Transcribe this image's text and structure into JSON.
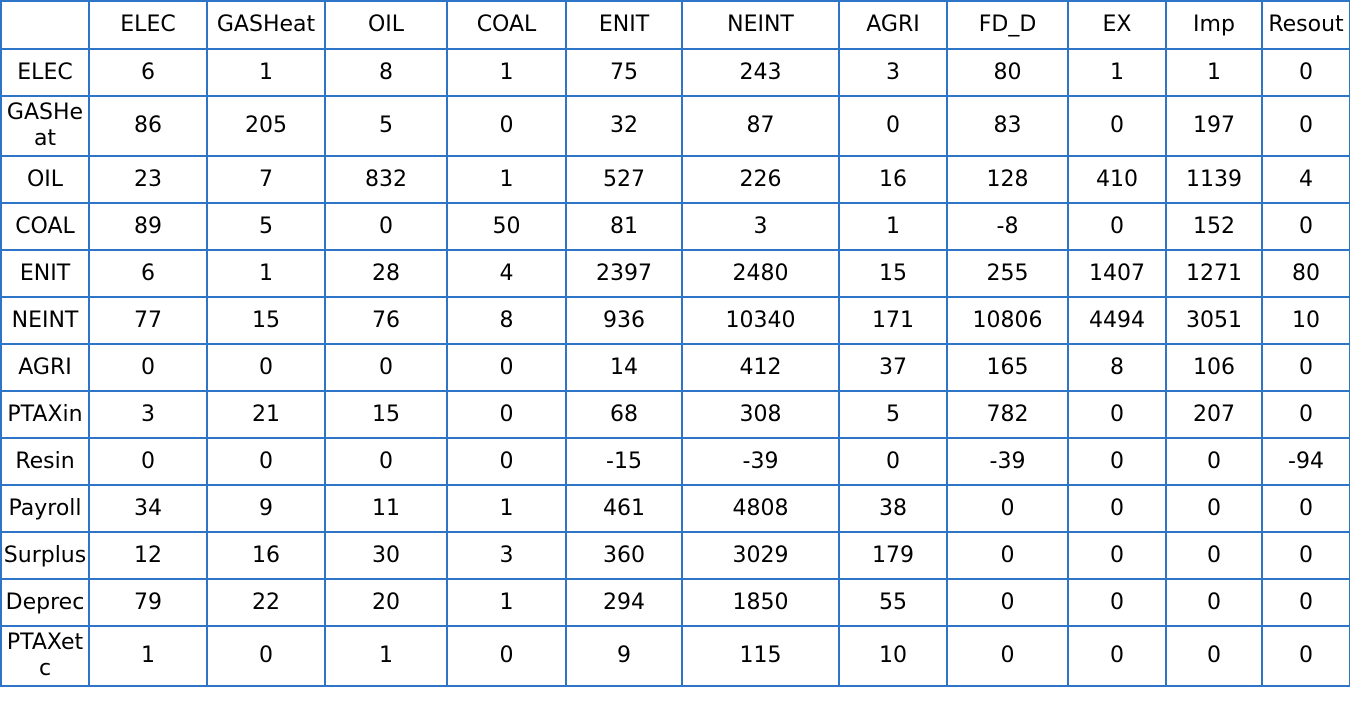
{
  "table": {
    "corner": "",
    "columns": [
      "ELEC",
      "GASHeat",
      "OIL",
      "COAL",
      "ENIT",
      "NEINT",
      "AGRI",
      "FD_D",
      "EX",
      "Imp",
      "Resout"
    ],
    "rows": [
      {
        "label": "ELEC",
        "values": [
          "6",
          "1",
          "8",
          "1",
          "75",
          "243",
          "3",
          "80",
          "1",
          "1",
          "0"
        ]
      },
      {
        "label": "GASHeat",
        "values": [
          "86",
          "205",
          "5",
          "0",
          "32",
          "87",
          "0",
          "83",
          "0",
          "197",
          "0"
        ]
      },
      {
        "label": "OIL",
        "values": [
          "23",
          "7",
          "832",
          "1",
          "527",
          "226",
          "16",
          "128",
          "410",
          "1139",
          "4"
        ]
      },
      {
        "label": "COAL",
        "values": [
          "89",
          "5",
          "0",
          "50",
          "81",
          "3",
          "1",
          "-8",
          "0",
          "152",
          "0"
        ]
      },
      {
        "label": "ENIT",
        "values": [
          "6",
          "1",
          "28",
          "4",
          "2397",
          "2480",
          "15",
          "255",
          "1407",
          "1271",
          "80"
        ]
      },
      {
        "label": "NEINT",
        "values": [
          "77",
          "15",
          "76",
          "8",
          "936",
          "10340",
          "171",
          "10806",
          "4494",
          "3051",
          "10"
        ]
      },
      {
        "label": "AGRI",
        "values": [
          "0",
          "0",
          "0",
          "0",
          "14",
          "412",
          "37",
          "165",
          "8",
          "106",
          "0"
        ]
      },
      {
        "label": "PTAXin",
        "values": [
          "3",
          "21",
          "15",
          "0",
          "68",
          "308",
          "5",
          "782",
          "0",
          "207",
          "0"
        ]
      },
      {
        "label": "Resin",
        "values": [
          "0",
          "0",
          "0",
          "0",
          "-15",
          "-39",
          "0",
          "-39",
          "0",
          "0",
          "-94"
        ]
      },
      {
        "label": "Payroll",
        "values": [
          "34",
          "9",
          "11",
          "1",
          "461",
          "4808",
          "38",
          "0",
          "0",
          "0",
          "0"
        ]
      },
      {
        "label": "Surplus",
        "values": [
          "12",
          "16",
          "30",
          "3",
          "360",
          "3029",
          "179",
          "0",
          "0",
          "0",
          "0"
        ]
      },
      {
        "label": "Deprec",
        "values": [
          "79",
          "22",
          "20",
          "1",
          "294",
          "1850",
          "55",
          "0",
          "0",
          "0",
          "0"
        ]
      },
      {
        "label": "PTAXetc",
        "values": [
          "1",
          "0",
          "1",
          "0",
          "9",
          "115",
          "10",
          "0",
          "0",
          "0",
          "0"
        ]
      }
    ]
  },
  "colors": {
    "border": "#2e74c7",
    "text": "#000000",
    "background": "#ffffff"
  }
}
